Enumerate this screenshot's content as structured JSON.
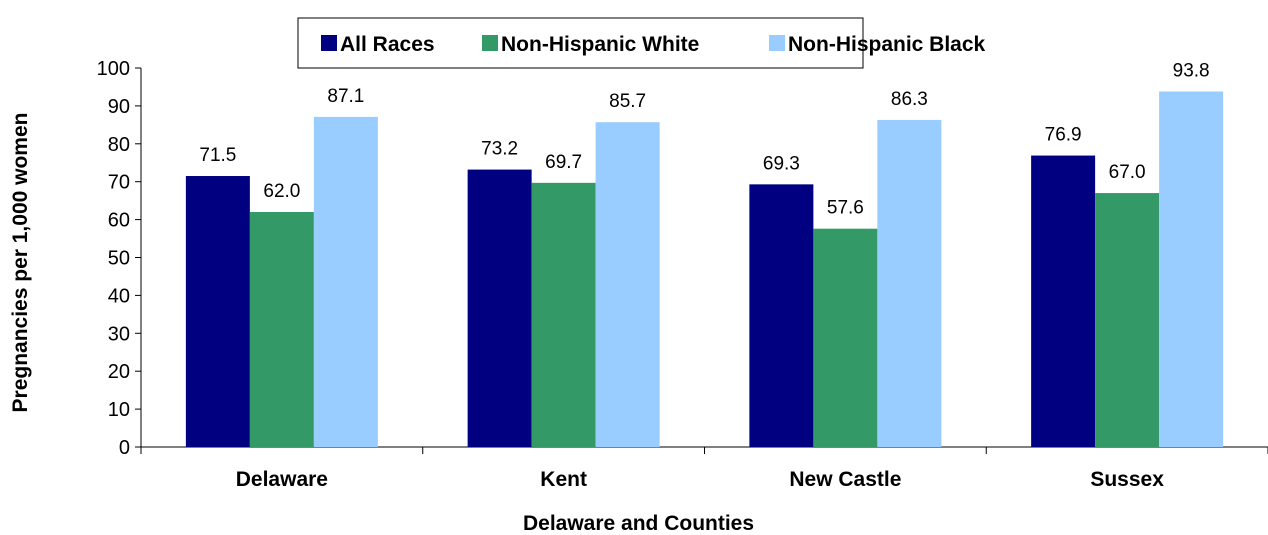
{
  "chart_data": {
    "type": "bar",
    "title": "",
    "xlabel": "Delaware and Counties",
    "ylabel": "Pregnancies per 1,000 women",
    "ylim": [
      0,
      100
    ],
    "ytick_step": 10,
    "categories": [
      "Delaware",
      "Kent",
      "New Castle",
      "Sussex"
    ],
    "series": [
      {
        "name": "All Races",
        "color": "#000080",
        "values": [
          71.5,
          73.2,
          69.3,
          76.9
        ],
        "labels": [
          "71.5",
          "73.2",
          "69.3",
          "76.9"
        ]
      },
      {
        "name": "Non-Hispanic White",
        "color": "#339966",
        "values": [
          62.0,
          69.7,
          57.6,
          67.0
        ],
        "labels": [
          "62.0",
          "69.7",
          "57.6",
          "67.0"
        ]
      },
      {
        "name": "Non-Hispanic Black",
        "color": "#99CCFF",
        "values": [
          87.1,
          85.7,
          86.3,
          93.8
        ],
        "labels": [
          "87.1",
          "85.7",
          "86.3",
          "93.8"
        ]
      }
    ],
    "legend": {
      "position": "top"
    },
    "grid": false
  }
}
